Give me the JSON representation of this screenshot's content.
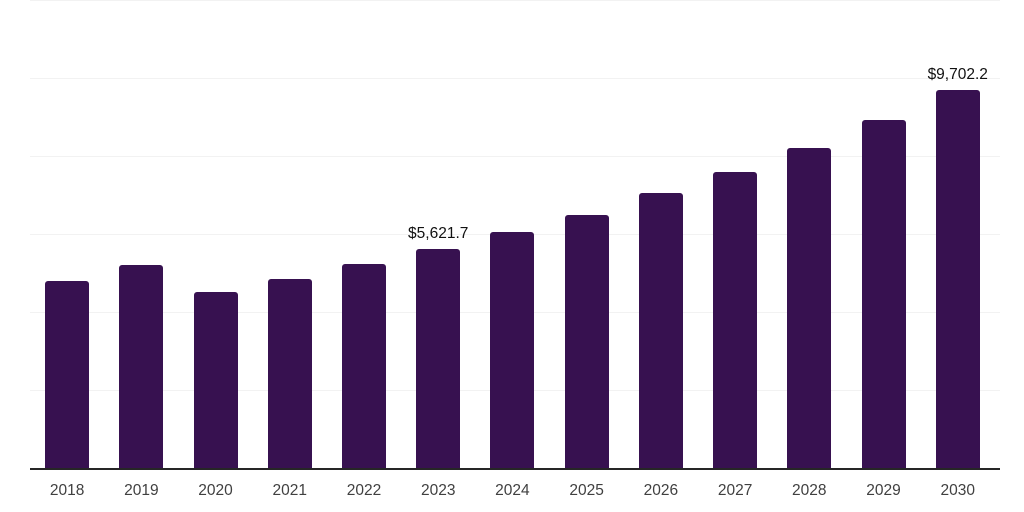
{
  "chart_data": {
    "type": "bar",
    "title": "",
    "xlabel": "",
    "ylabel": "",
    "categories": [
      "2018",
      "2019",
      "2020",
      "2021",
      "2022",
      "2023",
      "2024",
      "2025",
      "2026",
      "2027",
      "2028",
      "2029",
      "2030"
    ],
    "values": [
      4790,
      5200,
      4510,
      4840,
      5230,
      5621.7,
      6040,
      6500,
      7040,
      7600,
      8210,
      8920,
      9702.2
    ],
    "data_labels": {
      "2023": "$5,621.7",
      "2030": "$9,702.2"
    },
    "ylim": [
      0,
      12000
    ],
    "gridline_step": 2000,
    "grid": "horizontal-only",
    "legend": "none",
    "y_axis_tick_labels": "none",
    "colors": {
      "bar": "#371150",
      "axis_line": "#262626",
      "gridline": "#f2f2f2",
      "tick_label": "#404040",
      "data_label": "#111111",
      "background": "#ffffff"
    }
  }
}
